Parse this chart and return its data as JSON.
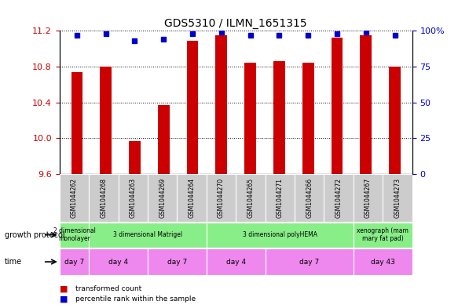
{
  "title": "GDS5310 / ILMN_1651315",
  "samples": [
    "GSM1044262",
    "GSM1044268",
    "GSM1044263",
    "GSM1044269",
    "GSM1044264",
    "GSM1044270",
    "GSM1044265",
    "GSM1044271",
    "GSM1044266",
    "GSM1044272",
    "GSM1044267",
    "GSM1044273"
  ],
  "red_values": [
    10.74,
    10.8,
    9.97,
    10.37,
    11.09,
    11.15,
    10.84,
    10.86,
    10.84,
    11.12,
    11.15,
    10.8
  ],
  "blue_values": [
    97,
    98,
    93,
    94,
    98,
    99,
    97,
    97,
    97,
    98,
    99,
    97
  ],
  "ylim_left": [
    9.6,
    11.2
  ],
  "ylim_right": [
    0,
    100
  ],
  "yticks_left": [
    9.6,
    10.0,
    10.4,
    10.8,
    11.2
  ],
  "yticks_right": [
    0,
    25,
    50,
    75,
    100
  ],
  "right_tick_labels": [
    "0",
    "25",
    "50",
    "75",
    "100%"
  ],
  "bar_color": "#cc0000",
  "dot_color": "#0000cc",
  "growth_protocol_groups": [
    {
      "label": "2 dimensional\nmonolayer",
      "start": 0,
      "end": 1
    },
    {
      "label": "3 dimensional Matrigel",
      "start": 1,
      "end": 5
    },
    {
      "label": "3 dimensional polyHEMA",
      "start": 5,
      "end": 10
    },
    {
      "label": "xenograph (mam\nmary fat pad)",
      "start": 10,
      "end": 12
    }
  ],
  "time_groups": [
    {
      "label": "day 7",
      "start": 0,
      "end": 1
    },
    {
      "label": "day 4",
      "start": 1,
      "end": 3
    },
    {
      "label": "day 7",
      "start": 3,
      "end": 5
    },
    {
      "label": "day 4",
      "start": 5,
      "end": 7
    },
    {
      "label": "day 7",
      "start": 7,
      "end": 10
    },
    {
      "label": "day 43",
      "start": 10,
      "end": 12
    }
  ],
  "sample_bg_color": "#cccccc",
  "growth_protocol_color": "#88ee88",
  "time_color": "#ee88ee",
  "left_axis_color": "#cc0000",
  "right_axis_color": "#0000cc",
  "bar_width": 0.4
}
